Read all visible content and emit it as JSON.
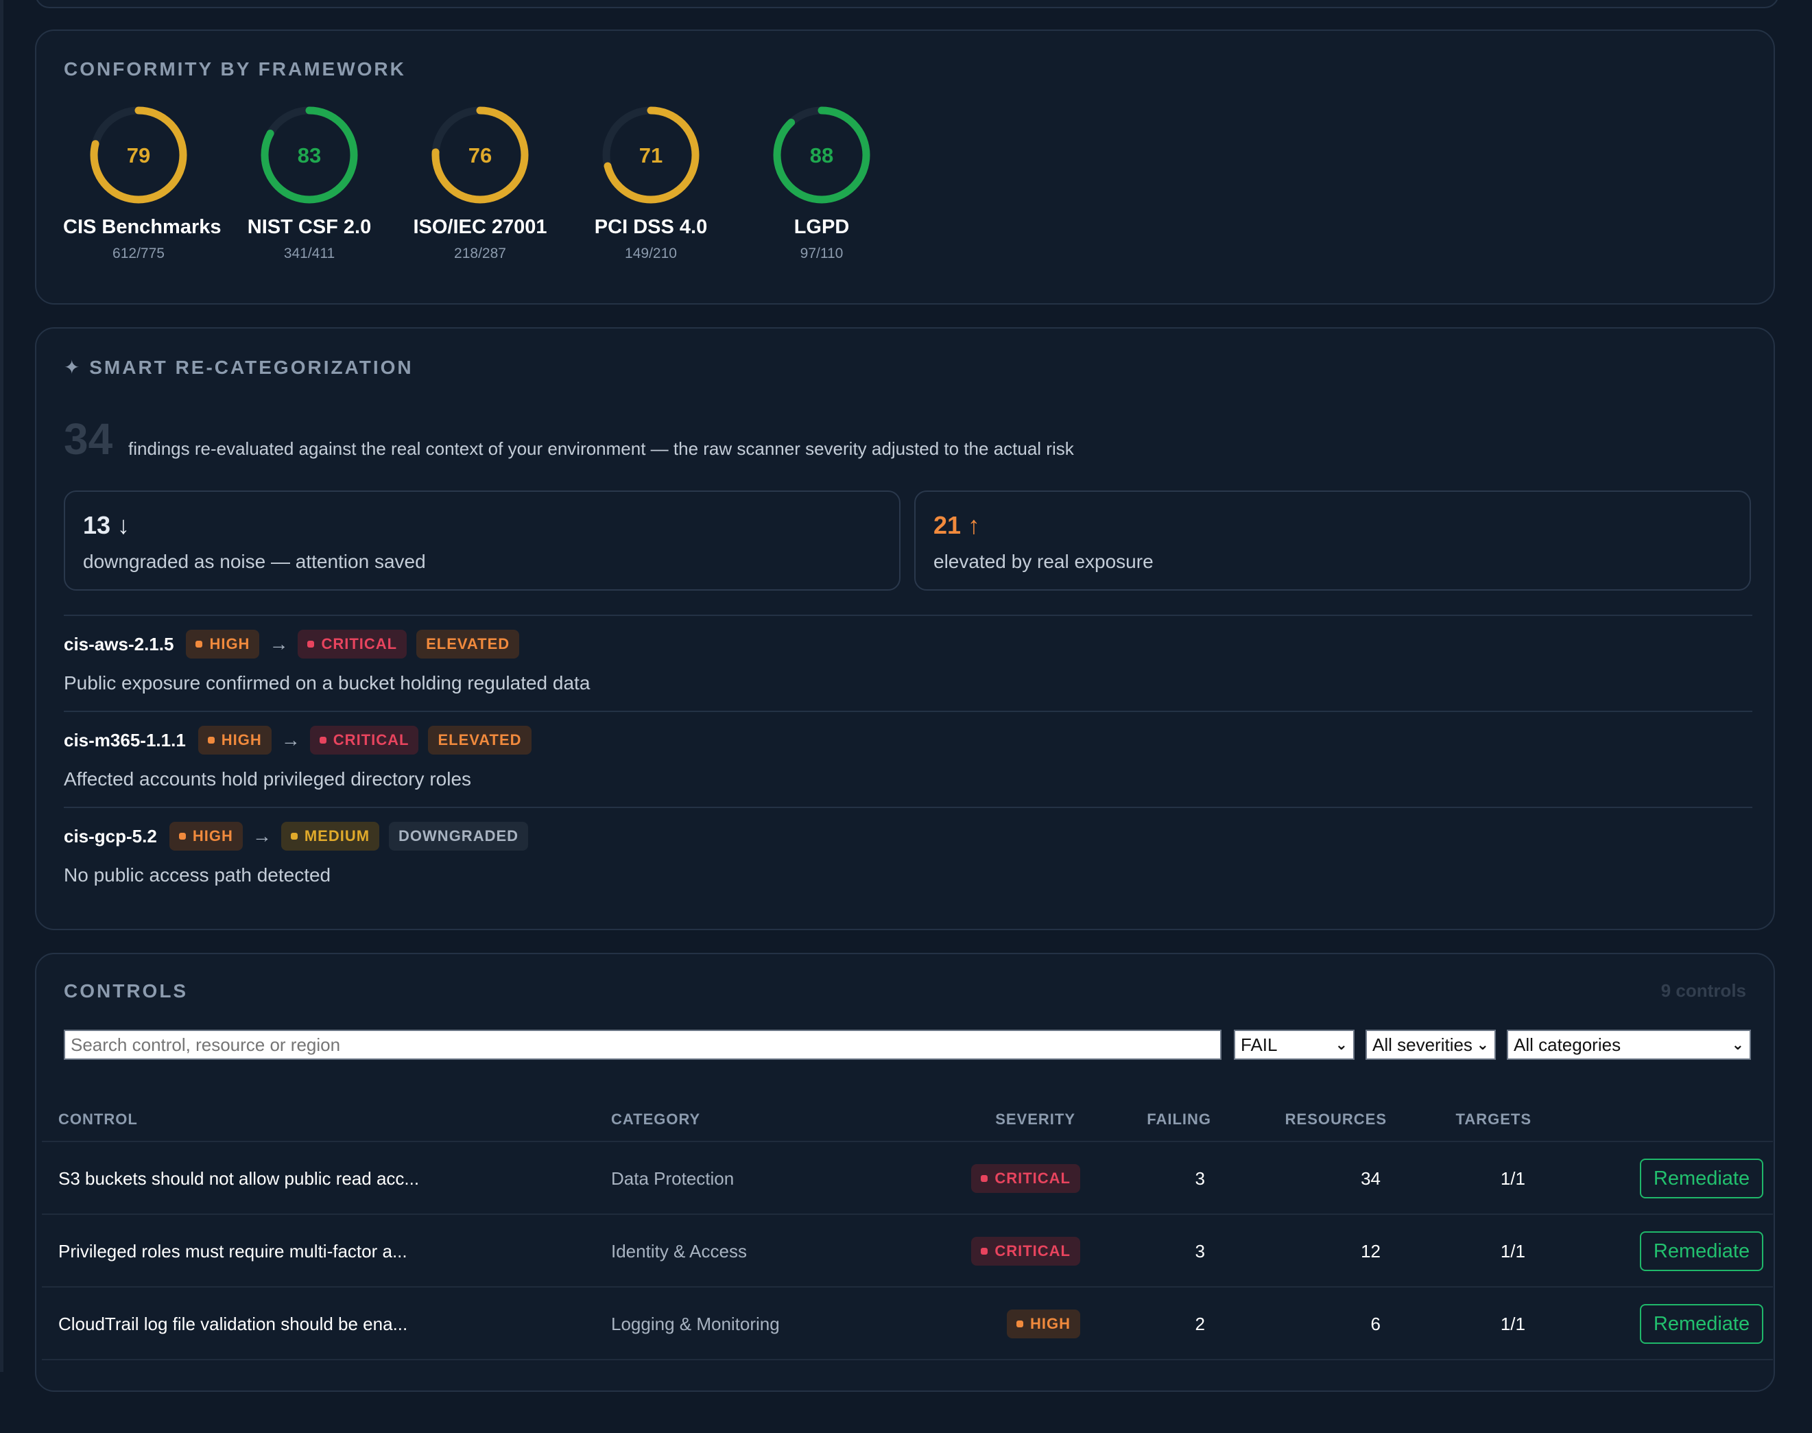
{
  "colors": {
    "background": "#0f1927",
    "card": "#111c2b",
    "amber": "#e0aa2b",
    "green": "#1fa84f",
    "orange": "#f18a3d",
    "critical": "#e8445e",
    "remediate": "#22c06e"
  },
  "conformity": {
    "title": "CONFORMITY BY FRAMEWORK",
    "frameworks": [
      {
        "score": 79,
        "name": "CIS Benchmarks",
        "count": "612/775",
        "color": "#e0aa2b"
      },
      {
        "score": 83,
        "name": "NIST CSF 2.0",
        "count": "341/411",
        "color": "#1fa84f"
      },
      {
        "score": 76,
        "name": "ISO/IEC 27001",
        "count": "218/287",
        "color": "#e0aa2b"
      },
      {
        "score": 71,
        "name": "PCI DSS 4.0",
        "count": "149/210",
        "color": "#e0aa2b"
      },
      {
        "score": 88,
        "name": "LGPD",
        "count": "97/110",
        "color": "#1fa84f"
      }
    ]
  },
  "recat": {
    "title": "✦ SMART RE-CATEGORIZATION",
    "total": "34",
    "summary": "findings re-evaluated against the real context of your environment — the raw scanner severity adjusted to the actual risk",
    "downgraded": {
      "value": "13 ↓",
      "label": "downgraded as noise — attention saved"
    },
    "elevated": {
      "value": "21 ↑",
      "label": "elevated by real exposure"
    },
    "arrow": "→",
    "items": [
      {
        "id": "cis-aws-2.1.5",
        "from": "HIGH",
        "to": "CRITICAL",
        "status": "ELEVATED",
        "desc": "Public exposure confirmed on a bucket holding regulated data"
      },
      {
        "id": "cis-m365-1.1.1",
        "from": "HIGH",
        "to": "CRITICAL",
        "status": "ELEVATED",
        "desc": "Affected accounts hold privileged directory roles"
      },
      {
        "id": "cis-gcp-5.2",
        "from": "HIGH",
        "to": "MEDIUM",
        "status": "DOWNGRADED",
        "desc": "No public access path detected"
      }
    ]
  },
  "controls": {
    "title": "CONTROLS",
    "count": "9 controls",
    "search_placeholder": "Search control, resource or region",
    "filters": {
      "status": "FAIL",
      "severity": "All severities",
      "category": "All categories"
    },
    "columns": {
      "control": "CONTROL",
      "category": "CATEGORY",
      "severity": "SEVERITY",
      "failing": "FAILING",
      "resources": "RESOURCES",
      "targets": "TARGETS"
    },
    "action_label": "Remediate",
    "rows": [
      {
        "control": "S3 buckets should not allow public read acc...",
        "category": "Data Protection",
        "severity": "CRITICAL",
        "failing": "3",
        "resources": "34",
        "targets": "1/1"
      },
      {
        "control": "Privileged roles must require multi-factor a...",
        "category": "Identity & Access",
        "severity": "CRITICAL",
        "failing": "3",
        "resources": "12",
        "targets": "1/1"
      },
      {
        "control": "CloudTrail log file validation should be ena...",
        "category": "Logging & Monitoring",
        "severity": "HIGH",
        "failing": "2",
        "resources": "6",
        "targets": "1/1"
      }
    ]
  }
}
